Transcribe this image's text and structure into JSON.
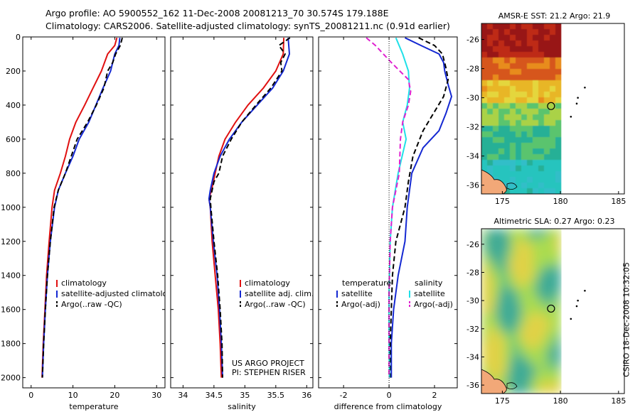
{
  "title_line1": "Argo profile: AO 5900552_162 11-Dec-2008 20081213_70 30.574S 179.188E",
  "title_line2": "Climatology: CARS2006. Satellite-adjusted climatology: synTS_20081211.nc (0.91d earlier)",
  "footer": {
    "line1": "US ARGO PROJECT",
    "line2": "PI: STEPHEN RISER"
  },
  "side_label": "CSIRO 18-Dec-2008 10:32:05",
  "colors": {
    "climatology": "#e01010",
    "satellite": "#1428d2",
    "argo": "#000000",
    "sat_salinity": "#20e0e8",
    "argo_salinity": "#e020d0"
  },
  "chart_data": [
    {
      "type": "line",
      "xlabel": "temperature",
      "xlim": [
        -2,
        32
      ],
      "ylim": [
        2060,
        0
      ],
      "xticks": [
        "0",
        "10",
        "20",
        "30"
      ],
      "yticks": [
        "0",
        "200",
        "400",
        "600",
        "800",
        "1000",
        "1200",
        "1400",
        "1600",
        "1800",
        "2000"
      ],
      "legend": [
        "climatology",
        "satellite-adjusted climatology",
        "Argo(..raw -QC)"
      ],
      "series": [
        {
          "name": "climatology",
          "color": "climatology",
          "points": [
            [
              20.5,
              5
            ],
            [
              20,
              50
            ],
            [
              18.3,
              100
            ],
            [
              16.8,
              200
            ],
            [
              14.8,
              300
            ],
            [
              12.8,
              400
            ],
            [
              10.7,
              500
            ],
            [
              9.2,
              600
            ],
            [
              8.2,
              700
            ],
            [
              7.0,
              800
            ],
            [
              5.6,
              900
            ],
            [
              5.0,
              1000
            ],
            [
              4.3,
              1200
            ],
            [
              3.7,
              1400
            ],
            [
              3.3,
              1600
            ],
            [
              2.9,
              1800
            ],
            [
              2.6,
              2000
            ]
          ]
        },
        {
          "name": "satellite-adjusted climatology",
          "color": "satellite",
          "points": [
            [
              21.2,
              5
            ],
            [
              21.0,
              50
            ],
            [
              20,
              100
            ],
            [
              19,
              200
            ],
            [
              17.2,
              300
            ],
            [
              15.5,
              400
            ],
            [
              13.8,
              500
            ],
            [
              11.5,
              600
            ],
            [
              10.0,
              700
            ],
            [
              8.2,
              800
            ],
            [
              6.5,
              900
            ],
            [
              5.6,
              1000
            ],
            [
              4.6,
              1200
            ],
            [
              3.9,
              1400
            ],
            [
              3.4,
              1600
            ],
            [
              3.0,
              1800
            ],
            [
              2.7,
              2000
            ]
          ]
        },
        {
          "name": "Argo(..raw -QC)",
          "color": "argo",
          "dash": true,
          "points": [
            [
              21.8,
              5
            ],
            [
              21.3,
              50
            ],
            [
              20.2,
              100
            ],
            [
              19.5,
              150
            ],
            [
              18.3,
              200
            ],
            [
              17.4,
              300
            ],
            [
              15.6,
              400
            ],
            [
              13.5,
              500
            ],
            [
              11.0,
              600
            ],
            [
              9.6,
              700
            ],
            [
              8.2,
              800
            ],
            [
              6.5,
              900
            ],
            [
              5.5,
              1000
            ],
            [
              4.6,
              1200
            ],
            [
              3.9,
              1400
            ],
            [
              3.4,
              1600
            ],
            [
              3.0,
              1800
            ],
            [
              2.7,
              2000
            ]
          ]
        }
      ]
    },
    {
      "type": "line",
      "xlabel": "salinity",
      "xlim": [
        33.8,
        36.1
      ],
      "ylim": [
        2060,
        0
      ],
      "xticks": [
        "34",
        "34.5",
        "35",
        "35.5",
        "36"
      ],
      "legend": [
        "climatology",
        "satellite adj. clim.",
        "Argo(..raw -QC)"
      ],
      "series": [
        {
          "name": "climatology",
          "color": "climatology",
          "points": [
            [
              35.63,
              5
            ],
            [
              35.62,
              100
            ],
            [
              35.5,
              200
            ],
            [
              35.3,
              300
            ],
            [
              35.05,
              400
            ],
            [
              34.85,
              500
            ],
            [
              34.68,
              600
            ],
            [
              34.58,
              700
            ],
            [
              34.52,
              800
            ],
            [
              34.46,
              900
            ],
            [
              34.42,
              950
            ],
            [
              34.44,
              1000
            ],
            [
              34.47,
              1200
            ],
            [
              34.52,
              1400
            ],
            [
              34.57,
              1600
            ],
            [
              34.6,
              1800
            ],
            [
              34.62,
              2000
            ]
          ]
        },
        {
          "name": "satellite adj. clim.",
          "color": "satellite",
          "points": [
            [
              35.7,
              5
            ],
            [
              35.72,
              100
            ],
            [
              35.62,
              200
            ],
            [
              35.45,
              300
            ],
            [
              35.2,
              400
            ],
            [
              34.95,
              500
            ],
            [
              34.75,
              600
            ],
            [
              34.6,
              700
            ],
            [
              34.5,
              800
            ],
            [
              34.44,
              900
            ],
            [
              34.42,
              950
            ],
            [
              34.44,
              1000
            ],
            [
              34.49,
              1200
            ],
            [
              34.55,
              1400
            ],
            [
              34.59,
              1600
            ],
            [
              34.62,
              1800
            ],
            [
              34.64,
              2000
            ]
          ]
        },
        {
          "name": "Argo(..raw -QC)",
          "color": "argo",
          "dash": true,
          "points": [
            [
              35.73,
              5
            ],
            [
              35.55,
              50
            ],
            [
              35.65,
              100
            ],
            [
              35.58,
              150
            ],
            [
              35.6,
              200
            ],
            [
              35.42,
              300
            ],
            [
              35.18,
              400
            ],
            [
              34.95,
              500
            ],
            [
              34.78,
              600
            ],
            [
              34.64,
              700
            ],
            [
              34.58,
              800
            ],
            [
              34.5,
              850
            ],
            [
              34.44,
              950
            ],
            [
              34.45,
              1000
            ],
            [
              34.5,
              1200
            ],
            [
              34.56,
              1400
            ],
            [
              34.6,
              1600
            ],
            [
              34.63,
              1800
            ],
            [
              34.64,
              2000
            ]
          ]
        }
      ]
    },
    {
      "type": "line",
      "xlabel": "difference from climatology",
      "xlim": [
        -3.1,
        3.0
      ],
      "ylim": [
        2060,
        0
      ],
      "xticks": [
        "-2",
        "0",
        "2"
      ],
      "legend_left": [
        "temperature",
        "satellite",
        "Argo(-adj)"
      ],
      "legend_right": [
        "salinity",
        "satellite",
        "Argo(-adj)"
      ],
      "series": [
        {
          "name": "temperature satellite",
          "color": "satellite",
          "points": [
            [
              0.7,
              5
            ],
            [
              1.4,
              50
            ],
            [
              2.2,
              100
            ],
            [
              2.4,
              150
            ],
            [
              2.45,
              200
            ],
            [
              2.6,
              280
            ],
            [
              2.75,
              350
            ],
            [
              2.5,
              450
            ],
            [
              2.2,
              550
            ],
            [
              1.5,
              650
            ],
            [
              1.0,
              800
            ],
            [
              0.9,
              900
            ],
            [
              0.8,
              1000
            ],
            [
              0.7,
              1200
            ],
            [
              0.4,
              1400
            ],
            [
              0.2,
              1600
            ],
            [
              0.1,
              1800
            ],
            [
              0.1,
              2000
            ]
          ]
        },
        {
          "name": "temperature Argo(-adj)",
          "color": "argo",
          "dash": true,
          "points": [
            [
              1.3,
              5
            ],
            [
              2.0,
              50
            ],
            [
              2.35,
              100
            ],
            [
              2.5,
              180
            ],
            [
              2.6,
              250
            ],
            [
              2.4,
              350
            ],
            [
              1.95,
              450
            ],
            [
              1.5,
              550
            ],
            [
              1.05,
              700
            ],
            [
              0.85,
              850
            ],
            [
              0.7,
              1000
            ],
            [
              0.3,
              1200
            ],
            [
              0.15,
              1400
            ],
            [
              0.1,
              1600
            ],
            [
              0.05,
              1800
            ],
            [
              0.05,
              2000
            ]
          ]
        },
        {
          "name": "salinity satellite",
          "color": "sat_salinity",
          "points": [
            [
              0.3,
              5
            ],
            [
              0.6,
              100
            ],
            [
              0.85,
              200
            ],
            [
              0.9,
              300
            ],
            [
              0.8,
              400
            ],
            [
              0.6,
              500
            ],
            [
              0.75,
              600
            ],
            [
              0.4,
              800
            ],
            [
              0.15,
              1000
            ],
            [
              0.05,
              1200
            ],
            [
              0.0,
              1500
            ],
            [
              0.0,
              1800
            ],
            [
              0.02,
              2000
            ]
          ]
        },
        {
          "name": "salinity Argo(-adj)",
          "color": "argo_salinity",
          "dash": true,
          "points": [
            [
              -1.0,
              5
            ],
            [
              -0.6,
              50
            ],
            [
              0.1,
              150
            ],
            [
              0.85,
              250
            ],
            [
              0.95,
              320
            ],
            [
              0.85,
              400
            ],
            [
              0.6,
              500
            ],
            [
              0.5,
              600
            ],
            [
              0.45,
              800
            ],
            [
              0.15,
              1000
            ],
            [
              0.05,
              1200
            ],
            [
              0.0,
              1500
            ],
            [
              0.0,
              2000
            ]
          ]
        }
      ]
    },
    {
      "type": "heatmap",
      "title": "AMSR-E SST: 21.2 Argo: 21.9",
      "xticks": [
        "175",
        "180",
        "185"
      ],
      "yticks": [
        "-26",
        "-28",
        "-30",
        "-32",
        "-34",
        "-36"
      ],
      "xlim": [
        173.2,
        185.5
      ],
      "ylim": [
        -36.6,
        -24.9
      ],
      "data_xmax": 180,
      "float_position": [
        179.19,
        -30.57
      ],
      "track": [
        [
          182.1,
          -29.3
        ],
        [
          181.5,
          -30.0
        ],
        [
          181.4,
          -30.4
        ],
        [
          180.9,
          -31.3
        ]
      ]
    },
    {
      "type": "heatmap",
      "title": "Altimetric SLA: 0.27 Argo: 0.23",
      "xticks": [
        "175",
        "180",
        "185"
      ],
      "yticks": [
        "-26",
        "-28",
        "-30",
        "-32",
        "-34",
        "-36"
      ],
      "xlim": [
        173.2,
        185.5
      ],
      "ylim": [
        -36.6,
        -24.9
      ],
      "data_xmax": 180,
      "float_position": [
        179.19,
        -30.57
      ],
      "track": [
        [
          182.1,
          -29.3
        ],
        [
          181.5,
          -30.0
        ],
        [
          181.4,
          -30.4
        ],
        [
          180.9,
          -31.3
        ]
      ]
    }
  ]
}
